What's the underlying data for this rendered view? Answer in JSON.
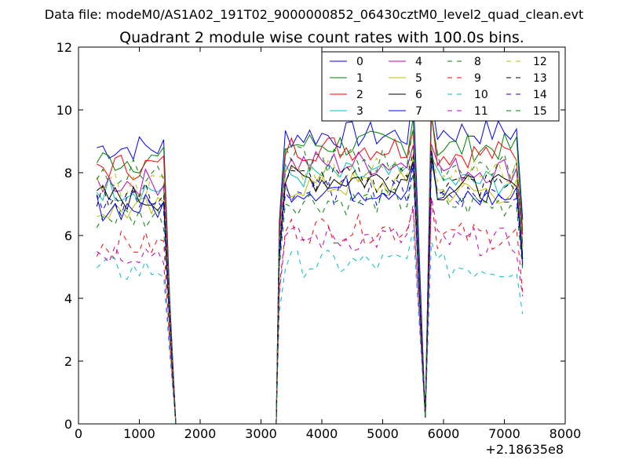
{
  "page": {
    "suptitle": "Data file: modeM0/AS1A02_191T02_9000000852_06430cztM0_level2_quad_clean.evt"
  },
  "chart_data": {
    "type": "line",
    "title": "Quadrant 2 module wise count rates with 100.0s bins.",
    "xlabel": "",
    "ylabel": "",
    "x_offset_label": "+2.18635e8",
    "xlim": [
      0,
      8000
    ],
    "ylim": [
      0,
      12
    ],
    "xticks": [
      0,
      1000,
      2000,
      3000,
      4000,
      5000,
      6000,
      7000,
      8000
    ],
    "yticks": [
      0,
      2,
      4,
      6,
      8,
      10,
      12
    ],
    "grid": false,
    "legend_position": "top-right",
    "legend_columns": 4,
    "segments": [
      {
        "start": 300,
        "end": 1400
      },
      {
        "start": 3400,
        "end": 5500
      },
      {
        "start": 5800,
        "end": 7200
      }
    ],
    "dropouts": [
      1600,
      5700
    ],
    "series": [
      {
        "name": "0",
        "color": "#0000ff",
        "dash": "solid",
        "level": [
          8.8,
          9.2,
          9.3
        ]
      },
      {
        "name": "1",
        "color": "#008000",
        "dash": "solid",
        "level": [
          8.4,
          8.9,
          8.8
        ]
      },
      {
        "name": "2",
        "color": "#ff0000",
        "dash": "solid",
        "level": [
          8.2,
          8.8,
          8.6
        ]
      },
      {
        "name": "3",
        "color": "#00bfbf",
        "dash": "solid",
        "level": [
          7.5,
          7.9,
          7.7
        ]
      },
      {
        "name": "4",
        "color": "#bf00bf",
        "dash": "solid",
        "level": [
          7.7,
          8.3,
          8.1
        ]
      },
      {
        "name": "5",
        "color": "#bfbf00",
        "dash": "solid",
        "level": [
          6.8,
          7.6,
          7.4
        ]
      },
      {
        "name": "6",
        "color": "#000000",
        "dash": "solid",
        "level": [
          7.2,
          7.8,
          7.5
        ]
      },
      {
        "name": "7",
        "color": "#0000ff",
        "dash": "solid",
        "level": [
          6.9,
          7.5,
          7.2
        ]
      },
      {
        "name": "8",
        "color": "#008000",
        "dash": "dashed",
        "level": [
          6.6,
          7.1,
          7.0
        ]
      },
      {
        "name": "9",
        "color": "#ff0000",
        "dash": "dashed",
        "level": [
          5.7,
          6.2,
          6.0
        ]
      },
      {
        "name": "10",
        "color": "#00bfbf",
        "dash": "dashed",
        "level": [
          4.9,
          5.1,
          5.0
        ]
      },
      {
        "name": "11",
        "color": "#bf00bf",
        "dash": "dashed",
        "level": [
          5.5,
          5.9,
          5.8
        ]
      },
      {
        "name": "12",
        "color": "#bfbf00",
        "dash": "dashed",
        "level": [
          7.6,
          8.1,
          8.0
        ]
      },
      {
        "name": "13",
        "color": "#000000",
        "dash": "dashed",
        "level": [
          7.3,
          7.8,
          7.6
        ]
      },
      {
        "name": "14",
        "color": "#0000ff",
        "dash": "dashed",
        "level": [
          7.0,
          7.4,
          7.3
        ]
      },
      {
        "name": "15",
        "color": "#008000",
        "dash": "dashed",
        "level": [
          8.0,
          8.4,
          8.2
        ]
      }
    ]
  }
}
